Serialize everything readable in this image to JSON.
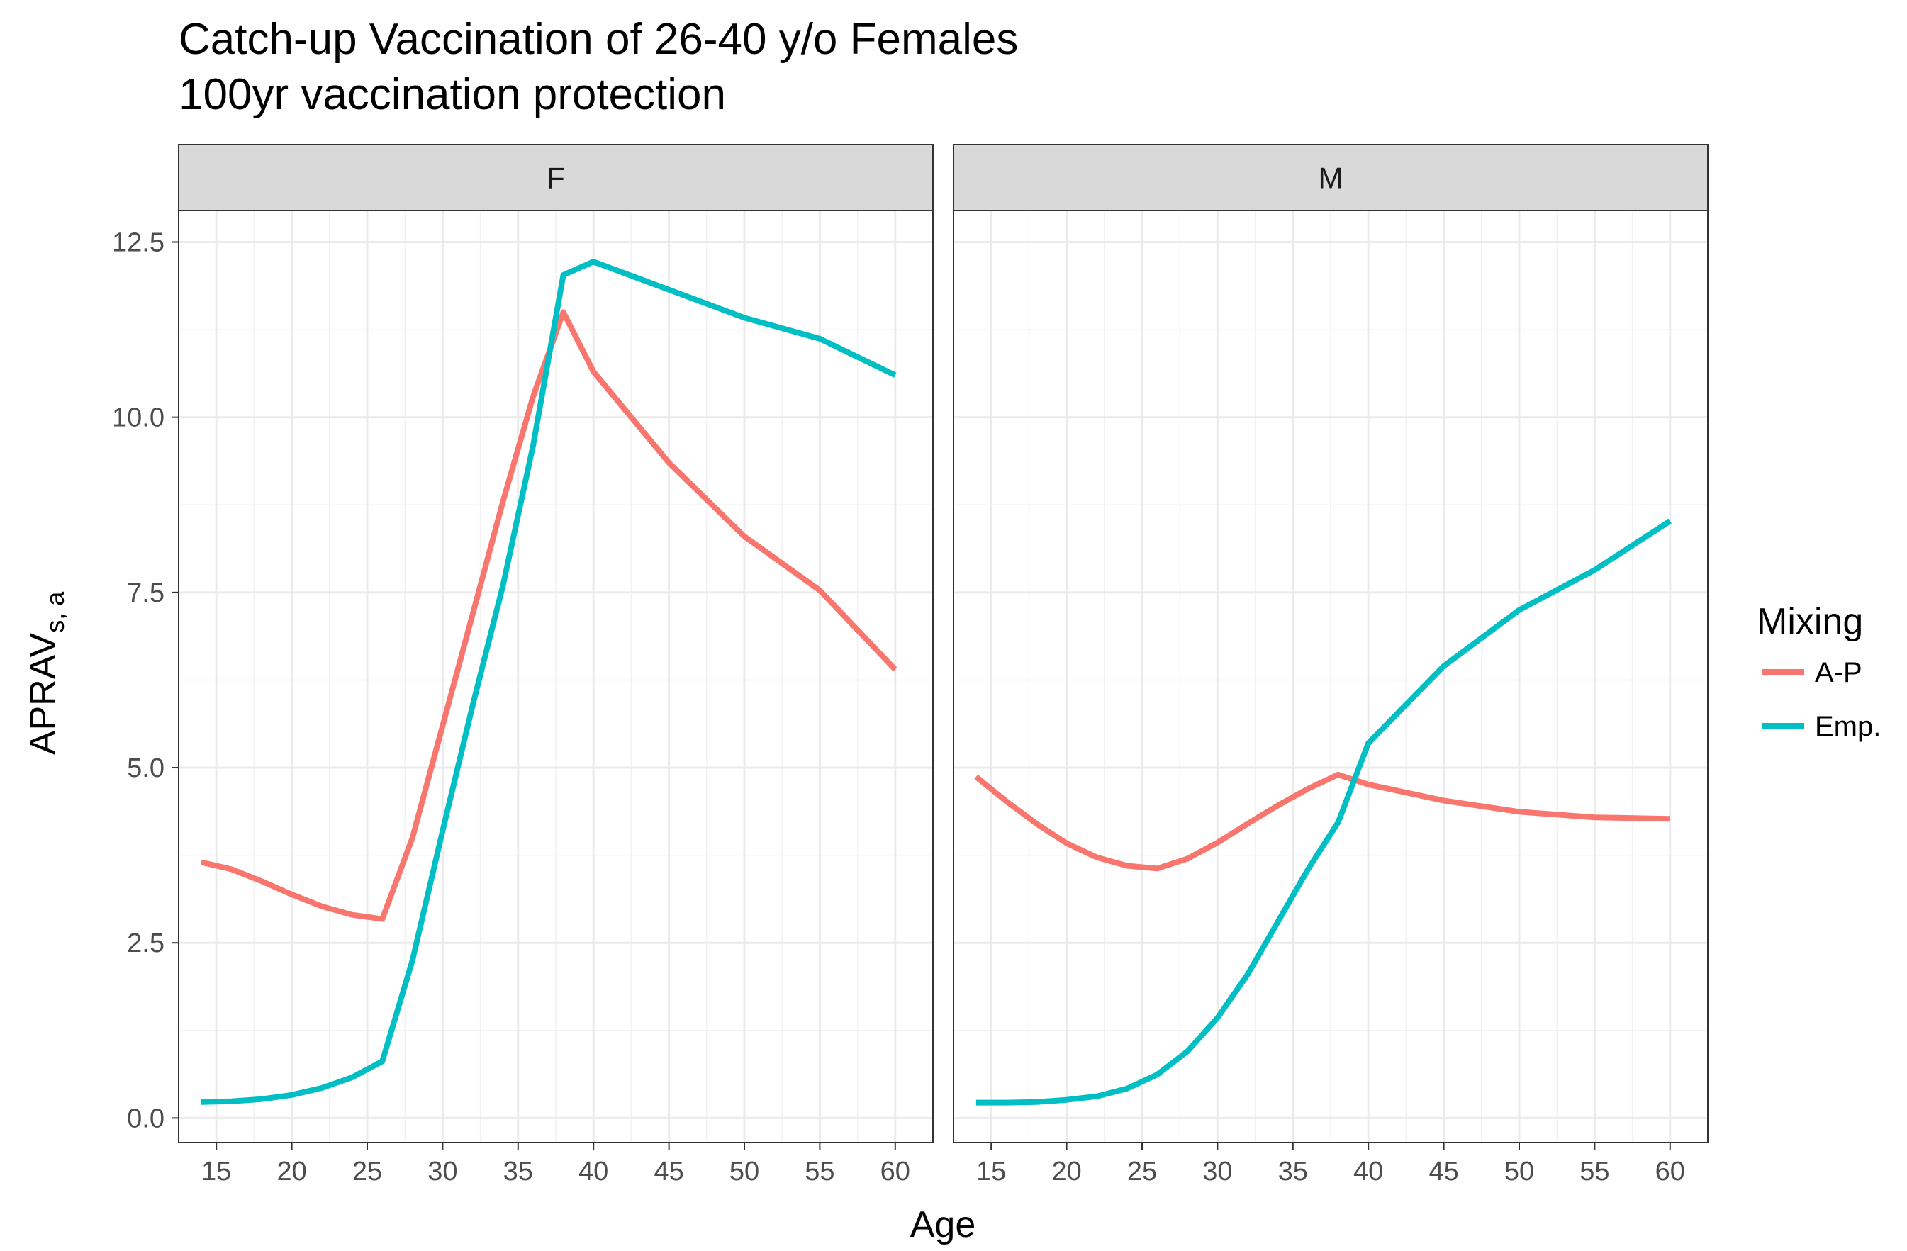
{
  "chart_data": {
    "type": "line",
    "title": "Catch-up Vaccination of 26-40 y/o Females",
    "subtitle": "100yr vaccination protection",
    "xlabel": "Age",
    "ylabel_main": "APRAV",
    "ylabel_sub": "s, a",
    "xlim": [
      12.5,
      62.5
    ],
    "ylim": [
      -0.35,
      12.95
    ],
    "x_ticks": [
      15,
      20,
      25,
      30,
      35,
      40,
      45,
      50,
      55,
      60
    ],
    "y_ticks": [
      0.0,
      2.5,
      5.0,
      7.5,
      10.0,
      12.5
    ],
    "y_tick_labels": [
      "0.0",
      "2.5",
      "5.0",
      "7.5",
      "10.0",
      "12.5"
    ],
    "grid": true,
    "legend": {
      "title": "Mixing",
      "position": "right",
      "entries": [
        {
          "label": "A-P",
          "color": "#F8766D"
        },
        {
          "label": "Emp.",
          "color": "#00BFC4"
        }
      ]
    },
    "facets": [
      {
        "label": "F",
        "series": [
          {
            "name": "A-P",
            "color": "#F8766D",
            "x": [
              14,
              16,
              18,
              20,
              22,
              24,
              26,
              28,
              30,
              32,
              34,
              36,
              38,
              40,
              45,
              50,
              55,
              60
            ],
            "y": [
              3.65,
              3.55,
              3.38,
              3.19,
              3.02,
              2.9,
              2.84,
              4.0,
              5.6,
              7.2,
              8.8,
              10.3,
              11.5,
              10.65,
              9.35,
              8.3,
              7.53,
              6.4
            ]
          },
          {
            "name": "Emp.",
            "color": "#00BFC4",
            "x": [
              14,
              16,
              18,
              20,
              22,
              24,
              26,
              28,
              30,
              32,
              34,
              36,
              38,
              40,
              45,
              50,
              55,
              60
            ],
            "y": [
              0.23,
              0.24,
              0.27,
              0.33,
              0.43,
              0.58,
              0.81,
              2.25,
              4.1,
              5.9,
              7.6,
              9.6,
              12.03,
              12.22,
              11.82,
              11.42,
              11.12,
              10.6
            ]
          }
        ]
      },
      {
        "label": "M",
        "series": [
          {
            "name": "A-P",
            "color": "#F8766D",
            "x": [
              14,
              16,
              18,
              20,
              22,
              24,
              26,
              28,
              30,
              32,
              34,
              36,
              38,
              40,
              45,
              50,
              55,
              60
            ],
            "y": [
              4.87,
              4.52,
              4.2,
              3.92,
              3.72,
              3.6,
              3.56,
              3.7,
              3.93,
              4.2,
              4.46,
              4.7,
              4.9,
              4.76,
              4.53,
              4.37,
              4.29,
              4.27
            ]
          },
          {
            "name": "Emp.",
            "color": "#00BFC4",
            "x": [
              14,
              16,
              18,
              20,
              22,
              24,
              26,
              28,
              30,
              32,
              34,
              36,
              38,
              40,
              45,
              50,
              55,
              60
            ],
            "y": [
              0.22,
              0.22,
              0.23,
              0.26,
              0.31,
              0.42,
              0.62,
              0.95,
              1.43,
              2.05,
              2.8,
              3.55,
              4.22,
              5.35,
              6.45,
              7.25,
              7.82,
              8.52
            ]
          }
        ]
      }
    ]
  }
}
